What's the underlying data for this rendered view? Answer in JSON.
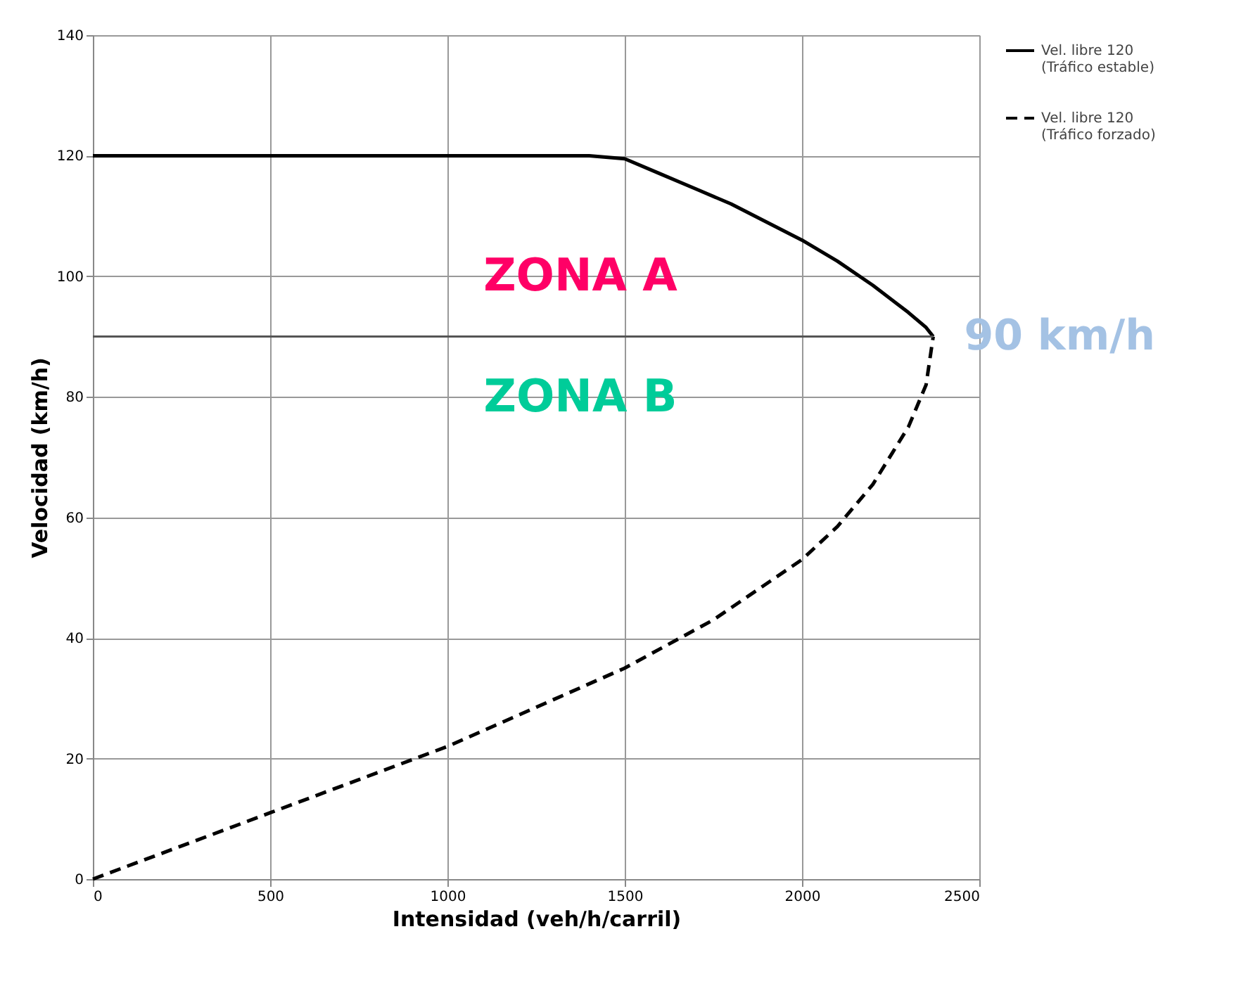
{
  "chart_data": {
    "type": "line",
    "xlabel": "Intensidad (veh/h/carril)",
    "ylabel": "Velocidad (km/h)",
    "xlim": [
      0,
      2500
    ],
    "ylim": [
      0,
      140
    ],
    "xticks": [
      0,
      500,
      1000,
      1500,
      2000,
      2500
    ],
    "yticks": [
      0,
      20,
      40,
      60,
      80,
      100,
      120,
      140
    ],
    "grid": true,
    "legend": "right",
    "marker": "none",
    "series": [
      {
        "name": "Vel. libre 120\n(Tráfico estable)",
        "color": "#000000",
        "line_style": "solid",
        "x": [
          0,
          1400,
          1500,
          1600,
          1700,
          1800,
          1900,
          2000,
          2100,
          2200,
          2300,
          2350,
          2370
        ],
        "values": [
          120,
          120,
          119.5,
          117,
          114.5,
          112,
          109,
          106,
          102.5,
          98.5,
          94,
          91.5,
          90
        ]
      },
      {
        "name": "Vel. libre 120\n(Tráfico forzado)",
        "color": "#000000",
        "line_style": "dashed",
        "x": [
          0,
          250,
          500,
          750,
          1000,
          1250,
          1500,
          1750,
          2000,
          2100,
          2200,
          2300,
          2350,
          2370
        ],
        "values": [
          0,
          5.5,
          11,
          16.5,
          22,
          28.5,
          35,
          43,
          53,
          58.5,
          65.5,
          75,
          82,
          90
        ]
      }
    ],
    "ref_lines": [
      {
        "axis": "y",
        "value": 90,
        "label": "90 km/h",
        "color": "#555555"
      }
    ],
    "annotations": [
      "ZONA A",
      "ZONA B"
    ]
  }
}
